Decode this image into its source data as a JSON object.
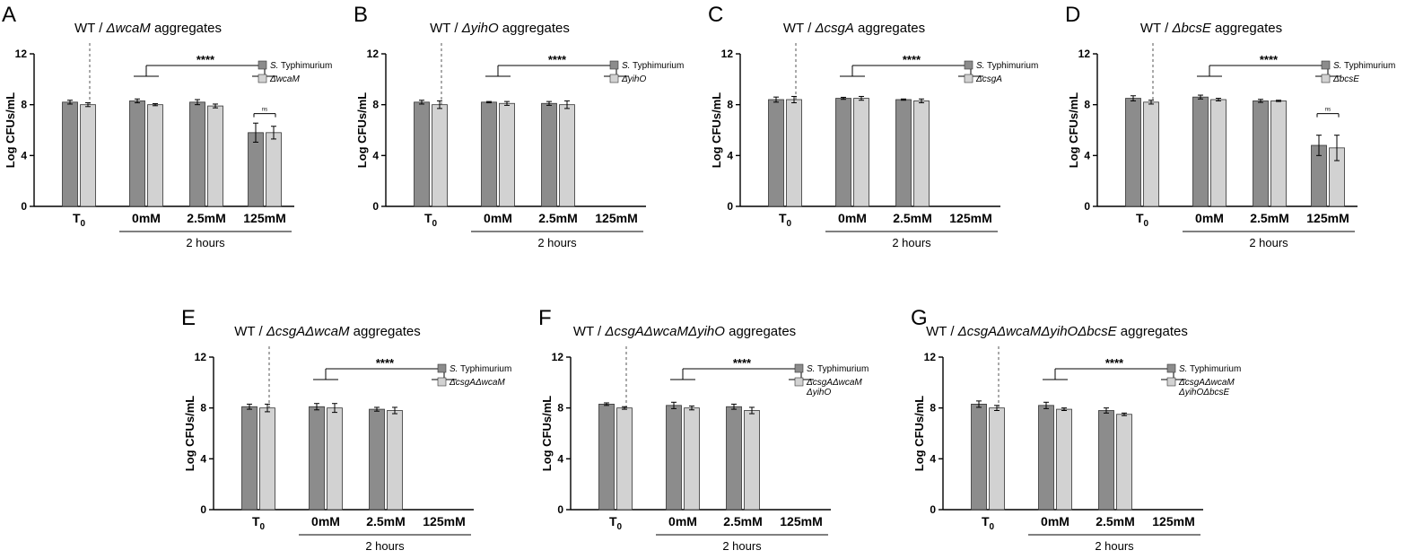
{
  "colors": {
    "series1": "#8c8c8c",
    "series2": "#d2d2d2",
    "stroke": "#000000"
  },
  "chart_data": [
    {
      "letter": "A",
      "type": "bar",
      "title": [
        "WT / ",
        "ΔwcaM",
        " aggregates"
      ],
      "ylabel": "Log CFUs/mL",
      "ylim": [
        0,
        12
      ],
      "yticks": [
        0,
        4,
        8,
        12
      ],
      "categories": [
        "T0",
        "0mM",
        "2.5mM",
        "125mM"
      ],
      "group_label": "2 hours",
      "series": [
        {
          "name": [
            "S.",
            " Typhimurium"
          ],
          "values": [
            8.2,
            8.3,
            8.2,
            5.8
          ],
          "errors": [
            0.15,
            0.15,
            0.2,
            0.75
          ]
        },
        {
          "name": [
            "ΔwcaM"
          ],
          "values": [
            8.0,
            8.0,
            7.9,
            5.8
          ],
          "errors": [
            0.15,
            0.08,
            0.15,
            0.5
          ]
        }
      ],
      "significance": "****",
      "ns_label": "ns",
      "ns_category": 3
    },
    {
      "letter": "B",
      "type": "bar",
      "title": [
        "WT / ",
        "ΔyihO",
        " aggregates"
      ],
      "ylabel": "Log CFUs/mL",
      "ylim": [
        0,
        12
      ],
      "yticks": [
        0,
        4,
        8,
        12
      ],
      "categories": [
        "T0",
        "0mM",
        "2.5mM",
        "125mM"
      ],
      "group_label": "2 hours",
      "series": [
        {
          "name": [
            "S.",
            " Typhimurium"
          ],
          "values": [
            8.2,
            8.2,
            8.1,
            0
          ],
          "errors": [
            0.15,
            0.05,
            0.15,
            0
          ]
        },
        {
          "name": [
            "ΔyihO"
          ],
          "values": [
            8.0,
            8.1,
            8.0,
            0
          ],
          "errors": [
            0.3,
            0.15,
            0.3,
            0
          ]
        }
      ],
      "significance": "****"
    },
    {
      "letter": "C",
      "type": "bar",
      "title": [
        "WT / ",
        "ΔcsgA",
        " aggregates"
      ],
      "ylabel": "Log CFUs/mL",
      "ylim": [
        0,
        12
      ],
      "yticks": [
        0,
        4,
        8,
        12
      ],
      "categories": [
        "T0",
        "0mM",
        "2.5mM",
        "125mM"
      ],
      "group_label": "2 hours",
      "series": [
        {
          "name": [
            "S.",
            " Typhimurium"
          ],
          "values": [
            8.4,
            8.5,
            8.4,
            0
          ],
          "errors": [
            0.2,
            0.08,
            0.05,
            0
          ]
        },
        {
          "name": [
            "ΔcsgA"
          ],
          "values": [
            8.4,
            8.5,
            8.3,
            0
          ],
          "errors": [
            0.25,
            0.15,
            0.15,
            0
          ]
        }
      ],
      "significance": "****"
    },
    {
      "letter": "D",
      "type": "bar",
      "title": [
        "WT / ",
        "ΔbcsE",
        " aggregates"
      ],
      "ylabel": "Log CFUs/mL",
      "ylim": [
        0,
        12
      ],
      "yticks": [
        0,
        4,
        8,
        12
      ],
      "categories": [
        "T0",
        "0mM",
        "2.5mM",
        "125mM"
      ],
      "group_label": "2 hours",
      "series": [
        {
          "name": [
            "S.",
            " Typhimurium"
          ],
          "values": [
            8.5,
            8.6,
            8.3,
            4.8
          ],
          "errors": [
            0.2,
            0.15,
            0.12,
            0.8
          ]
        },
        {
          "name": [
            "ΔbcsE"
          ],
          "values": [
            8.2,
            8.4,
            8.3,
            4.6
          ],
          "errors": [
            0.15,
            0.1,
            0.05,
            1.0
          ]
        }
      ],
      "significance": "****",
      "ns_label": "ns",
      "ns_category": 3
    },
    {
      "letter": "E",
      "type": "bar",
      "title": [
        "WT / ",
        "ΔcsgAΔwcaM",
        " aggregates"
      ],
      "ylabel": "Log CFUs/mL",
      "ylim": [
        0,
        12
      ],
      "yticks": [
        0,
        4,
        8,
        12
      ],
      "categories": [
        "T0",
        "0mM",
        "2.5mM",
        "125mM"
      ],
      "group_label": "2 hours",
      "series": [
        {
          "name": [
            "S.",
            " Typhimurium"
          ],
          "values": [
            8.1,
            8.1,
            7.9,
            0
          ],
          "errors": [
            0.2,
            0.25,
            0.15,
            0
          ]
        },
        {
          "name": [
            "ΔcsgAΔwcaM"
          ],
          "values": [
            8.0,
            8.0,
            7.8,
            0
          ],
          "errors": [
            0.3,
            0.35,
            0.25,
            0
          ]
        }
      ],
      "significance": "****"
    },
    {
      "letter": "F",
      "type": "bar",
      "title": [
        "WT / ",
        "ΔcsgAΔwcaMΔyihO",
        " aggregates"
      ],
      "ylabel": "Log CFUs/mL",
      "ylim": [
        0,
        12
      ],
      "yticks": [
        0,
        4,
        8,
        12
      ],
      "categories": [
        "T0",
        "0mM",
        "2.5mM",
        "125mM"
      ],
      "group_label": "2 hours",
      "series": [
        {
          "name": [
            "S.",
            " Typhimurium"
          ],
          "values": [
            8.3,
            8.2,
            8.1,
            0
          ],
          "errors": [
            0.1,
            0.25,
            0.2,
            0
          ]
        },
        {
          "name": [
            "ΔcsgAΔwcaM",
            "ΔyihO"
          ],
          "values": [
            8.0,
            8.0,
            7.8,
            0
          ],
          "errors": [
            0.1,
            0.15,
            0.25,
            0
          ]
        }
      ],
      "significance": "****"
    },
    {
      "letter": "G",
      "type": "bar",
      "title": [
        "WT / ",
        "ΔcsgAΔwcaMΔyihOΔbcsE",
        " aggregates"
      ],
      "ylabel": "Log CFUs/mL",
      "ylim": [
        0,
        12
      ],
      "yticks": [
        0,
        4,
        8,
        12
      ],
      "categories": [
        "T0",
        "0mM",
        "2.5mM",
        "125mM"
      ],
      "group_label": "2 hours",
      "series": [
        {
          "name": [
            "S.",
            " Typhimurium"
          ],
          "values": [
            8.3,
            8.2,
            7.8,
            0
          ],
          "errors": [
            0.25,
            0.25,
            0.2,
            0
          ]
        },
        {
          "name": [
            "ΔcsgAΔwcaM",
            "ΔyihOΔbcsE"
          ],
          "values": [
            8.0,
            7.9,
            7.5,
            0
          ],
          "errors": [
            0.2,
            0.1,
            0.1,
            0
          ]
        }
      ],
      "significance": "****"
    }
  ]
}
